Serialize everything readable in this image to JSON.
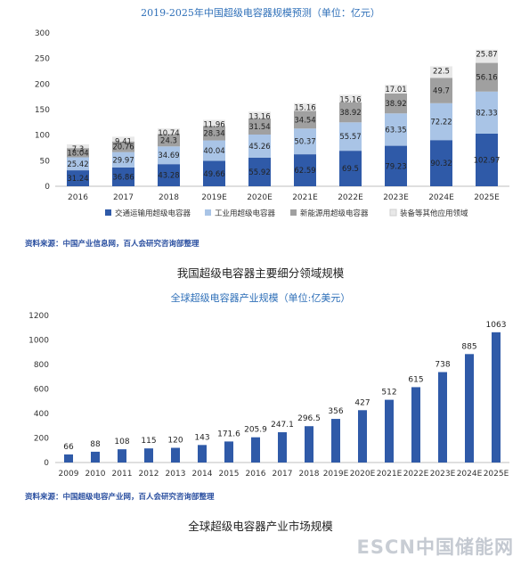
{
  "chart_data": [
    {
      "type": "bar",
      "stacked": true,
      "title": "2019-2025年中国超级电容器规模预测（单位：亿元）",
      "categories": [
        "2016",
        "2017",
        "2018",
        "2019E",
        "2020E",
        "2021E",
        "2022E",
        "2023E",
        "2024E",
        "2025E"
      ],
      "ylim": [
        0,
        300
      ],
      "yticks": [
        0,
        50,
        100,
        150,
        200,
        250,
        300
      ],
      "grid": false,
      "legend_position": "bottom",
      "series": [
        {
          "name": "交通运输用超级电容器",
          "color": "#2f5aa8",
          "values": [
            31.24,
            36.86,
            43.28,
            49.66,
            55.92,
            62.59,
            69.5,
            79.23,
            90.32,
            102.97
          ]
        },
        {
          "name": "工业用超级电容器",
          "color": "#a9c4e6",
          "values": [
            25.42,
            29.97,
            34.69,
            40.04,
            45.26,
            50.37,
            55.57,
            63.35,
            72.22,
            82.33
          ]
        },
        {
          "name": "新能源用超级电容器",
          "color": "#a0a0a0",
          "values": [
            18.04,
            20.76,
            24.3,
            28.34,
            31.54,
            34.54,
            38.92,
            38.92,
            49.7,
            56.16
          ]
        },
        {
          "name": "装备等其他应用领域",
          "color": "#e8e8e8",
          "values": [
            7.3,
            9.41,
            10.74,
            11.96,
            13.16,
            15.16,
            15.16,
            17.01,
            22.5,
            25.87
          ]
        }
      ],
      "source": "资料来源：中国产业信息网，百人会研究咨询部整理",
      "caption": "我国超级电容器主要细分领域规模"
    },
    {
      "type": "bar",
      "title": "全球超级电容器产业规模（单位:亿美元）",
      "categories": [
        "2009",
        "2010",
        "2011",
        "2012",
        "2013",
        "2014",
        "2015",
        "2016",
        "2017",
        "2018",
        "2019E",
        "2020E",
        "2021E",
        "2022E",
        "2023E",
        "2024E",
        "2025E"
      ],
      "values": [
        66,
        88,
        108,
        115,
        120,
        143,
        171.6,
        205.9,
        247.1,
        296.5,
        356,
        427,
        512,
        615,
        738,
        885,
        1063
      ],
      "value_labels": [
        "66",
        "88",
        "108",
        "115",
        "120",
        "143",
        "171.6",
        "205.9",
        "247.1",
        "296.5",
        "356",
        "427",
        "512",
        "615",
        "738",
        "885",
        "1063"
      ],
      "color": "#2f5aa8",
      "ylim": [
        0,
        1200
      ],
      "yticks": [
        0,
        200,
        400,
        600,
        800,
        1000,
        1200
      ],
      "grid": false,
      "source": "资料来源：中国超级电容产业网，百人会研究咨询部整理",
      "caption": "全球超级电容器产业市场规模"
    }
  ],
  "watermark": {
    "text_a": "ESCN",
    "text_b": "中国储能网"
  }
}
